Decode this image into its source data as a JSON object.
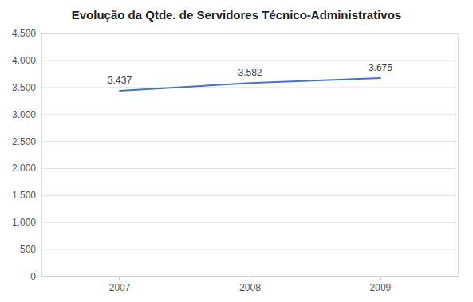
{
  "chart_data": {
    "type": "line",
    "title": "Evolução da Qtde. de Servidores Técnico-Administrativos",
    "x": [
      2007,
      2008,
      2009
    ],
    "values": [
      3437,
      3582,
      3675
    ],
    "value_labels": [
      "3.437",
      "3.582",
      "3.675"
    ],
    "data_labels": true,
    "color": "#4472C4",
    "xlim": [
      2006.4,
      2009.6
    ],
    "xticks": [
      2007,
      2008,
      2009
    ],
    "ylim": [
      0,
      4500
    ],
    "yticks": [
      0,
      500,
      {
        "value": 1000,
        "label": "1.000"
      },
      {
        "value": 1500,
        "label": "1.500"
      },
      {
        "value": 2000,
        "label": "2.000"
      },
      {
        "value": 2500,
        "label": "2.500"
      },
      {
        "value": 3000,
        "label": "3.000"
      },
      {
        "value": 3500,
        "label": "3.500"
      },
      {
        "value": 4000,
        "label": "4.000"
      },
      {
        "value": 4500,
        "label": "4.500"
      }
    ],
    "grid": true
  }
}
